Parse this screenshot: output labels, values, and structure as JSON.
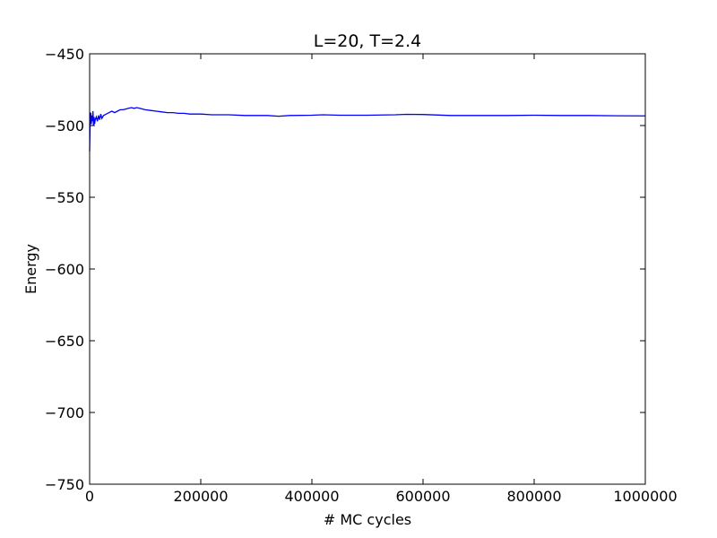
{
  "chart_data": {
    "type": "line",
    "title": "L=20, T=2.4",
    "xlabel": "# MC cycles",
    "ylabel": "Energy",
    "xlim": [
      0,
      1000000
    ],
    "ylim": [
      -750,
      -450
    ],
    "x_ticks": [
      0,
      200000,
      400000,
      600000,
      800000,
      1000000
    ],
    "x_tick_labels": [
      "0",
      "200000",
      "400000",
      "600000",
      "800000",
      "1000000"
    ],
    "y_ticks": [
      -450,
      -500,
      -550,
      -600,
      -650,
      -700,
      -750
    ],
    "y_tick_labels": [
      "−450",
      "−500",
      "−550",
      "−600",
      "−650",
      "−700",
      "−750"
    ],
    "grid": false,
    "line_color": "#0000ff",
    "series": [
      {
        "x": [
          0,
          1000,
          2000,
          3000,
          4000,
          5000,
          6000,
          7000,
          8000,
          9000,
          10000,
          12000,
          14000,
          16000,
          18000,
          20000,
          22000,
          25000,
          30000,
          35000,
          40000,
          45000,
          50000,
          55000,
          60000,
          65000,
          70000,
          75000,
          80000,
          85000,
          90000,
          100000,
          110000,
          120000,
          130000,
          140000,
          150000,
          160000,
          170000,
          180000,
          200000,
          220000,
          250000,
          280000,
          300000,
          320000,
          340000,
          360000,
          400000,
          420000,
          450000,
          500000,
          550000,
          570000,
          600000,
          650000,
          700000,
          750000,
          800000,
          850000,
          900000,
          950000,
          1000000
        ],
        "y": [
          -518,
          -496,
          -491,
          -499,
          -493,
          -497,
          -490,
          -500,
          -494,
          -499,
          -496,
          -494,
          -497,
          -493,
          -496,
          -492,
          -495,
          -493,
          -492,
          -491,
          -490,
          -491,
          -490,
          -489,
          -489,
          -488.5,
          -488,
          -487.5,
          -488,
          -487.5,
          -488,
          -489,
          -489.5,
          -490,
          -490.5,
          -491,
          -491,
          -491.5,
          -491.5,
          -492,
          -492,
          -492.5,
          -492.5,
          -493,
          -493,
          -493,
          -493.5,
          -493,
          -492.8,
          -492.5,
          -492.8,
          -492.8,
          -492.5,
          -492.2,
          -492.3,
          -493,
          -493,
          -493,
          -492.8,
          -493,
          -493,
          -493.2,
          -493.3
        ]
      }
    ]
  }
}
